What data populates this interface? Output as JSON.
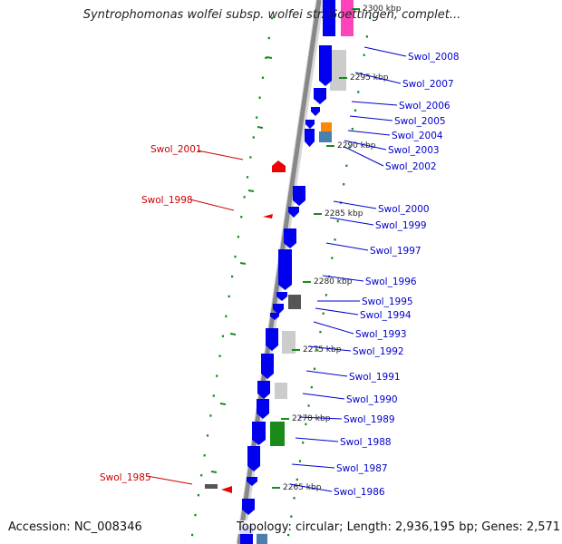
{
  "title": "Syntrophomonas wolfei subsp. wolfei str. Goettingen, complet...",
  "accession": "Accession: NC_008346",
  "topology": "Topology: circular; Length: 2,936,195 bp; Genes: 2,571",
  "colors": {
    "forward_gene": "#0000ee",
    "reverse_label": "#cc0000",
    "forward_label": "#0000cc",
    "backbone": "#888888",
    "tick": "#1a8a1a"
  },
  "kbp_ticks": [
    {
      "label": "2300 kbp"
    },
    {
      "label": "2295 kbp"
    },
    {
      "label": "2290 kbp"
    },
    {
      "label": "2285 kbp"
    },
    {
      "label": "2280 kbp"
    },
    {
      "label": "2275 kbp"
    },
    {
      "label": "2270 kbp"
    },
    {
      "label": "2265 kbp"
    }
  ],
  "genes_right": [
    {
      "label": "Swol_2008"
    },
    {
      "label": "Swol_2007"
    },
    {
      "label": "Swol_2006"
    },
    {
      "label": "Swol_2005"
    },
    {
      "label": "Swol_2004"
    },
    {
      "label": "Swol_2003"
    },
    {
      "label": "Swol_2002"
    },
    {
      "label": "Swol_2000"
    },
    {
      "label": "Swol_1999"
    },
    {
      "label": "Swol_1997"
    },
    {
      "label": "Swol_1996"
    },
    {
      "label": "Swol_1995"
    },
    {
      "label": "Swol_1994"
    },
    {
      "label": "Swol_1993"
    },
    {
      "label": "Swol_1992"
    },
    {
      "label": "Swol_1991"
    },
    {
      "label": "Swol_1990"
    },
    {
      "label": "Swol_1989"
    },
    {
      "label": "Swol_1988"
    },
    {
      "label": "Swol_1987"
    },
    {
      "label": "Swol_1986"
    }
  ],
  "genes_left": [
    {
      "label": "Swol_2001"
    },
    {
      "label": "Swol_1998"
    },
    {
      "label": "Swol_1985"
    }
  ]
}
